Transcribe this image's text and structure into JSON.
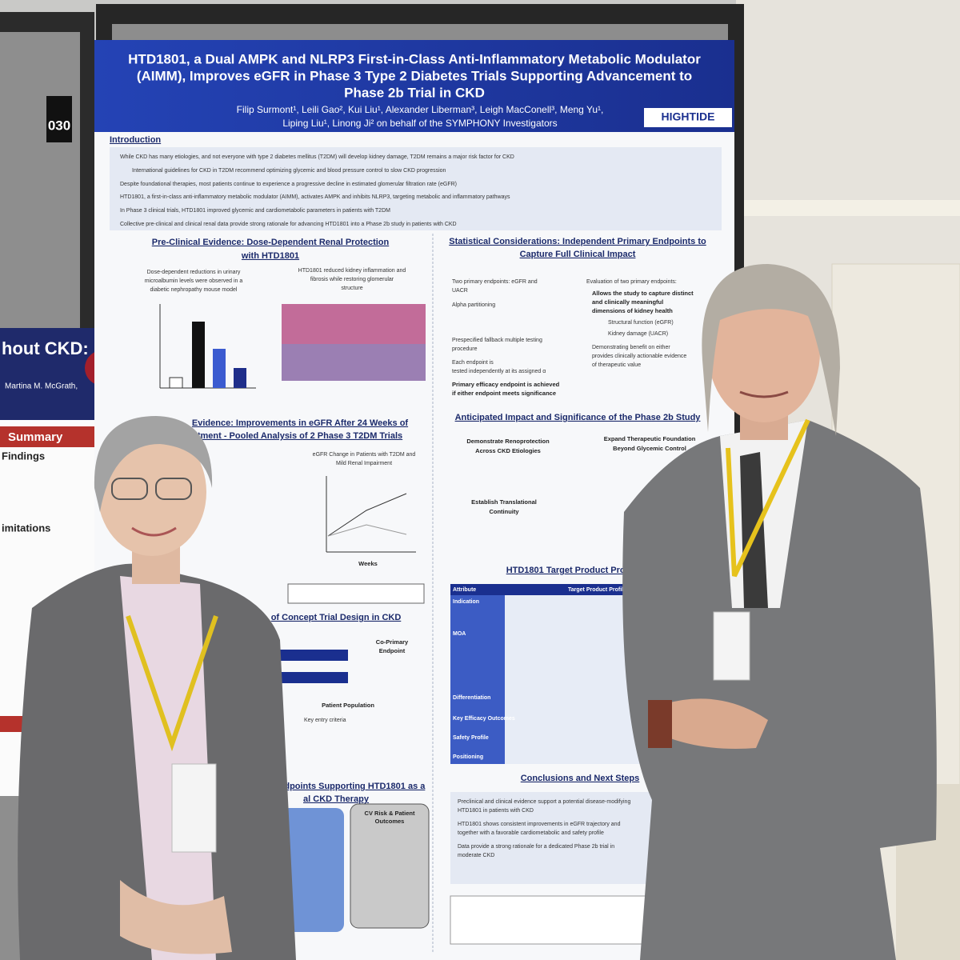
{
  "booth_number": "030",
  "left_poster": {
    "title": "hout CKD:",
    "author": "Martina M. McGrath,",
    "summary_heading": "Summary",
    "findings_heading": "Findings",
    "limitations_heading": "imitations"
  },
  "poster": {
    "title_lines": [
      "HTD1801, a Dual AMPK and NLRP3 First-in-Class Anti-Inflammatory Metabolic Modulator",
      "(AIMM), Improves eGFR in Phase 3 Type 2 Diabetes Trials Supporting Advancement to",
      "Phase 2b Trial in CKD"
    ],
    "author_lines": [
      "Filip Surmont¹, Leili Gao², Kui Liu¹, Alexander Liberman³, Leigh MacConell³, Meng Yu¹,",
      "Liping Liu¹, Linong Ji²  on behalf of the SYMPHONY Investigators"
    ],
    "logo": "HIGHTIDE",
    "introduction": {
      "heading": "Introduction",
      "bullets": [
        "While CKD has many etiologies, and not everyone with type 2 diabetes mellitus (T2DM) will develop kidney damage, T2DM remains a major risk factor for CKD",
        "International guidelines for CKD in T2DM recommend optimizing glycemic and blood pressure control to slow CKD progression",
        "Despite foundational therapies, most patients continue to experience a progressive decline in estimated glomerular filtration rate (eGFR)",
        "HTD1801, a first-in-class anti-inflammatory metabolic modulator (AIMM), activates AMPK and inhibits NLRP3, targeting metabolic and inflammatory pathways",
        "In Phase 3 clinical trials, HTD1801 improved glycemic and cardiometabolic parameters in patients with T2DM",
        "Collective pre-clinical and clinical renal data provide strong rationale for advancing HTD1801 into a Phase 2b study in patients with CKD"
      ]
    },
    "preclinical": {
      "heading_lines": [
        "Pre-Clinical Evidence: Dose-Dependent Renal Protection",
        "with HTD1801"
      ],
      "left_caption": [
        "Dose-dependent reductions in urinary",
        "microalbumin levels were observed in a",
        "diabetic nephropathy mouse model"
      ],
      "right_caption": [
        "HTD1801 reduced kidney inflammation and",
        "fibrosis while restoring glomerular",
        "structure"
      ]
    },
    "clinical": {
      "heading_lines": [
        "Evidence: Improvements in eGFR After 24 Weeks of",
        "tment - Pooled Analysis of 2 Phase 3 T2DM Trials"
      ],
      "chart_title": [
        "eGFR Change in Patients with T2DM and",
        "Mild Renal Impairment"
      ],
      "x_label": "Weeks"
    },
    "trial_design": {
      "heading": "of Concept Trial Design in CKD",
      "endpoint": [
        "Co-Primary",
        "Endpoint"
      ],
      "population_heading": "Patient Population",
      "criteria": "Key entry criteria"
    },
    "endpoints": {
      "heading_lines": [
        "ndpoints Supporting HTD1801 as a",
        "al CKD Therapy"
      ],
      "box": [
        "CV Risk & Patient",
        "Outcomes"
      ]
    },
    "statistics": {
      "heading_lines": [
        "Statistical Considerations: Independent Primary Endpoints to",
        "Capture Full Clinical Impact"
      ],
      "left_bullets": [
        "Two primary endpoints: eGFR and",
        "UACR",
        "Alpha partitioning",
        "Prespecified fallback multiple testing",
        "procedure",
        "Each endpoint is",
        "tested independently at its assigned α",
        "Primary efficacy endpoint is achieved",
        "if either endpoint meets significance"
      ],
      "right_bullets": [
        "Evaluation of two primary endpoints:",
        "Allows the study to capture distinct",
        "and clinically meaningful",
        "dimensions of kidney health",
        "Structural function (eGFR)",
        "Kidney damage (UACR)",
        "Demonstrating benefit on either",
        "provides clinically actionable evidence",
        "of therapeutic value"
      ]
    },
    "impact": {
      "heading": "Anticipated Impact and Significance of the Phase 2b Study",
      "goals": [
        [
          "Demonstrate Renoprotection",
          "Across CKD Etiologies"
        ],
        [
          "Expand Therapeutic Foundation",
          "Beyond Glycemic Control"
        ],
        [
          "Establish Translational",
          "Continuity"
        ]
      ]
    },
    "tpp": {
      "heading": "HTD1801 Target Product Profile F",
      "columns": [
        "Attribute",
        "Target Product Profile for H"
      ],
      "rows": [
        "Indication",
        "MOA",
        "Differentiation",
        "Key Efficacy Outcomes",
        "Safety Profile",
        "Positioning"
      ]
    },
    "conclusions": {
      "heading": "Conclusions and Next Steps",
      "bullets": [
        "Preclinical and clinical evidence support a potential disease-modifying",
        "HTD1801 in patients with CKD",
        "HTD1801 shows consistent improvements in eGFR trajectory and",
        "together with a favorable cardiometabolic and safety profile",
        "Data provide a strong rationale for a dedicated Phase 2b trial in",
        "moderate CKD"
      ]
    }
  }
}
